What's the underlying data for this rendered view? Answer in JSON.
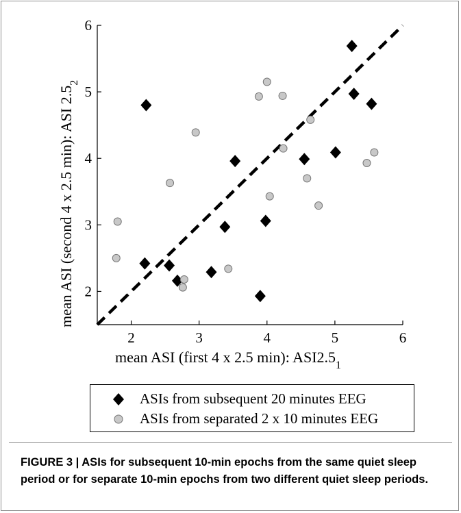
{
  "chart_data": {
    "type": "scatter",
    "xlabel": "mean ASI (first 4 x 2.5 min): ASI2.5",
    "xlabel_subscript": "1",
    "ylabel": "mean ASI (second 4 x 2.5 min): ASI 2.5",
    "ylabel_subscript": "2",
    "xlim": [
      1.5,
      6
    ],
    "ylim": [
      1.5,
      6
    ],
    "xticks": [
      2,
      3,
      4,
      5,
      6
    ],
    "yticks": [
      2,
      3,
      4,
      5,
      6
    ],
    "grid": false,
    "legend_position": "below plot",
    "reference_line": {
      "style": "dashed",
      "color": "#000000",
      "from": [
        1.5,
        1.5
      ],
      "to": [
        6,
        6
      ]
    },
    "series": [
      {
        "name": "ASIs from subsequent 20 minutes EEG",
        "marker": "diamond",
        "color": "#000000",
        "points": [
          [
            2.22,
            4.8
          ],
          [
            2.2,
            2.42
          ],
          [
            2.56,
            2.39
          ],
          [
            2.68,
            2.16
          ],
          [
            3.18,
            2.29
          ],
          [
            3.38,
            2.97
          ],
          [
            3.53,
            3.96
          ],
          [
            3.9,
            1.93
          ],
          [
            3.98,
            3.06
          ],
          [
            4.55,
            3.99
          ],
          [
            5.01,
            4.09
          ],
          [
            5.25,
            5.69
          ],
          [
            5.28,
            4.97
          ],
          [
            5.54,
            4.82
          ]
        ]
      },
      {
        "name": "ASIs from separated 2 x 10 minutes EEG",
        "marker": "circle",
        "color": "#c8c8c8",
        "points": [
          [
            1.78,
            2.5
          ],
          [
            1.8,
            3.05
          ],
          [
            2.57,
            3.63
          ],
          [
            2.76,
            2.06
          ],
          [
            2.78,
            2.18
          ],
          [
            2.95,
            4.39
          ],
          [
            3.43,
            2.34
          ],
          [
            3.88,
            4.93
          ],
          [
            4.0,
            5.15
          ],
          [
            4.04,
            3.43
          ],
          [
            4.23,
            4.94
          ],
          [
            4.24,
            4.15
          ],
          [
            4.59,
            3.7
          ],
          [
            4.64,
            4.58
          ],
          [
            4.76,
            3.29
          ],
          [
            5.47,
            3.93
          ],
          [
            5.58,
            4.09
          ]
        ]
      }
    ]
  },
  "caption": "FIGURE 3 | ASIs for subsequent 10-min epochs from the same quiet sleep period or for separate 10-min epochs from two different quiet sleep periods."
}
